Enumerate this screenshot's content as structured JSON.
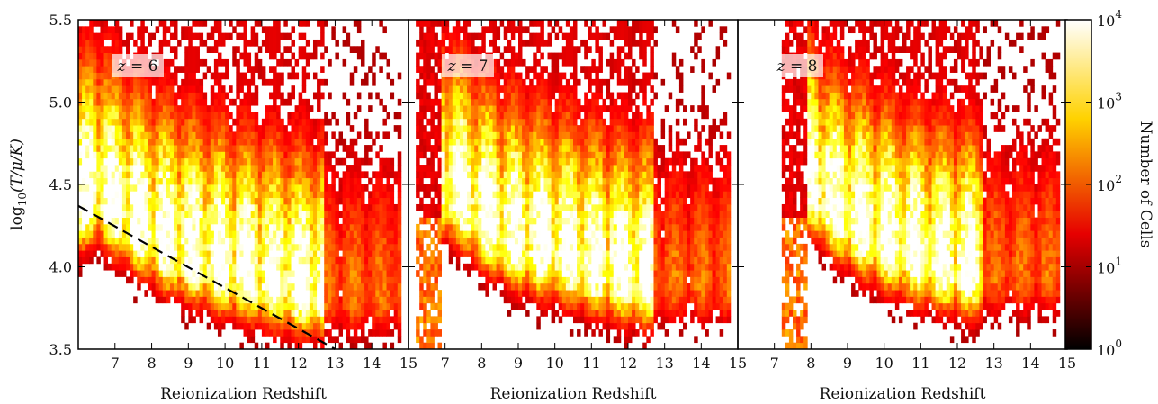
{
  "chart_data": {
    "type": "heatmap",
    "ylabel": "log10(T/μ/K)",
    "ylim": [
      3.5,
      5.5
    ],
    "yticks": [
      "3.5",
      "4.0",
      "4.5",
      "5.0",
      "5.5"
    ],
    "colorbar": {
      "label": "Number of Cells",
      "scale": "log",
      "range": [
        1,
        10000
      ],
      "ticks": [
        {
          "base": "10",
          "exp": "0",
          "value": 1
        },
        {
          "base": "10",
          "exp": "1",
          "value": 10
        },
        {
          "base": "10",
          "exp": "2",
          "value": 100
        },
        {
          "base": "10",
          "exp": "3",
          "value": 1000
        },
        {
          "base": "10",
          "exp": "4",
          "value": 10000
        }
      ],
      "colormap": "hot"
    },
    "panels": [
      {
        "label": "z = 6",
        "label_var": "z",
        "label_eq": "=",
        "label_val": "6",
        "xlabel": "Reionization Redshift",
        "xlim": [
          6,
          15
        ],
        "xticks": [
          "7",
          "8",
          "9",
          "10",
          "11",
          "12",
          "13",
          "14",
          "15"
        ],
        "ridge": [
          [
            6.0,
            4.35
          ],
          [
            6.5,
            4.42
          ],
          [
            7.0,
            4.32
          ],
          [
            8.0,
            4.15
          ],
          [
            9.0,
            4.05
          ],
          [
            10.0,
            3.97
          ],
          [
            11.0,
            3.9
          ],
          [
            12.0,
            3.85
          ],
          [
            12.6,
            3.83
          ]
        ],
        "fit_line": [
          [
            6.0,
            4.37
          ],
          [
            13.0,
            3.5
          ]
        ]
      },
      {
        "label": "z = 7",
        "label_var": "z",
        "label_eq": "=",
        "label_val": "7",
        "xlabel": "Reionization Redshift",
        "xlim": [
          6,
          15
        ],
        "xticks": [
          "7",
          "8",
          "9",
          "10",
          "11",
          "12",
          "13",
          "14",
          "15"
        ],
        "ridge": [
          [
            6.9,
            4.45
          ],
          [
            7.3,
            4.4
          ],
          [
            8.0,
            4.25
          ],
          [
            9.0,
            4.12
          ],
          [
            10.0,
            4.05
          ],
          [
            11.0,
            3.98
          ],
          [
            12.0,
            3.92
          ],
          [
            12.6,
            3.9
          ]
        ]
      },
      {
        "label": "z = 8",
        "label_var": "z",
        "label_eq": "=",
        "label_val": "8",
        "xlabel": "Reionization Redshift",
        "xlim": [
          6,
          15
        ],
        "xticks": [
          "7",
          "8",
          "9",
          "10",
          "11",
          "12",
          "13",
          "14",
          "15"
        ],
        "ridge": [
          [
            7.9,
            4.5
          ],
          [
            8.3,
            4.38
          ],
          [
            9.0,
            4.25
          ],
          [
            10.0,
            4.12
          ],
          [
            11.0,
            4.03
          ],
          [
            12.0,
            3.97
          ],
          [
            12.6,
            3.95
          ]
        ]
      }
    ]
  }
}
